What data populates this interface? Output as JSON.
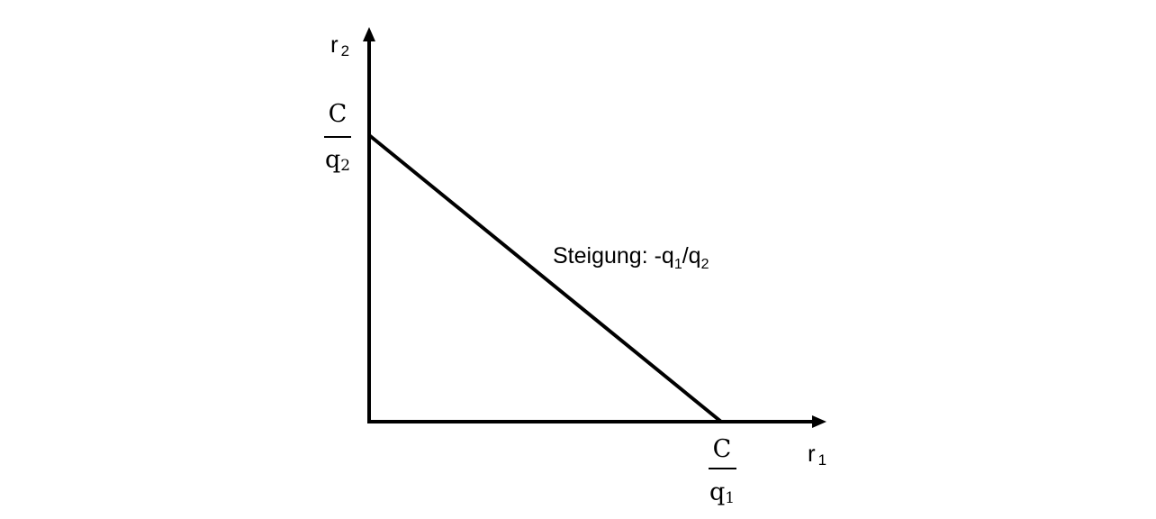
{
  "colors": {
    "line": "#000000",
    "background": "#ffffff"
  },
  "axes": {
    "x": {
      "base": "r",
      "sub": "1"
    },
    "y": {
      "base": "r",
      "sub": "2"
    }
  },
  "intercepts": {
    "y": {
      "numerator": "C",
      "denominator_base": "q",
      "denominator_sub": "2"
    },
    "x": {
      "numerator": "C",
      "denominator_base": "q",
      "denominator_sub": "1"
    }
  },
  "slope_label": {
    "prefix": "Steigung: -q",
    "sub1": "1",
    "mid": "/q",
    "sub2": "2"
  }
}
